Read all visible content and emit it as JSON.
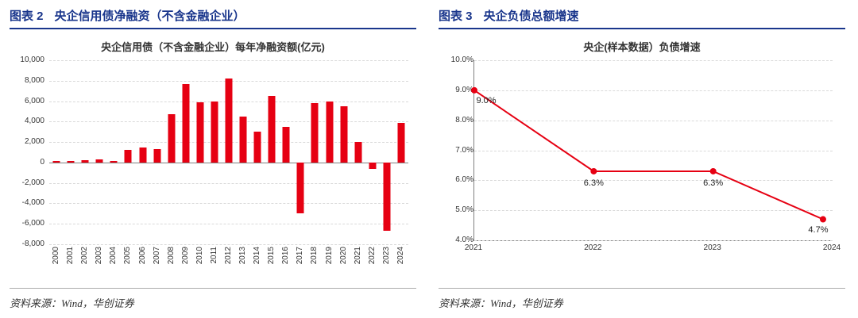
{
  "colors": {
    "header_blue": "#1a368c",
    "series_red": "#e60012",
    "grid": "#d9d9d9",
    "axis": "#808080",
    "text": "#333333"
  },
  "panels": [
    {
      "header_label": "图表 2",
      "header_title": "央企信用债净融资（不含金融企业）",
      "source": "资料来源：Wind，华创证券"
    },
    {
      "header_label": "图表 3",
      "header_title": "央企负债总额增速",
      "source": "资料来源：Wind，华创证券"
    }
  ],
  "chart_data": [
    {
      "type": "bar",
      "title": "央企信用债（不含金融企业）每年净融资额(亿元)",
      "categories": [
        "2000",
        "2001",
        "2002",
        "2003",
        "2004",
        "2005",
        "2006",
        "2007",
        "2008",
        "2009",
        "2010",
        "2011",
        "2012",
        "2013",
        "2014",
        "2015",
        "2016",
        "2017",
        "2018",
        "2019",
        "2020",
        "2021",
        "2022",
        "2023",
        "2024"
      ],
      "values": [
        100,
        100,
        250,
        300,
        150,
        1200,
        1500,
        1300,
        4700,
        7700,
        5900,
        6000,
        8200,
        4500,
        3000,
        6500,
        3500,
        -5000,
        5800,
        6000,
        5500,
        2000,
        -600,
        -6700,
        3900
      ],
      "ylim": [
        -8000,
        10000
      ],
      "ytick_step": 2000,
      "ytick_labels": [
        "10,000",
        "8,000",
        "6,000",
        "4,000",
        "2,000",
        "0",
        "-2,000",
        "-4,000",
        "-6,000",
        "-8,000"
      ],
      "grid": true,
      "legend": "none",
      "bar_color": "#e60012"
    },
    {
      "type": "line",
      "title": "央企(样本数据）负债增速",
      "x": [
        2021,
        2022,
        2023,
        2023.92
      ],
      "values": [
        9.0,
        6.3,
        6.3,
        4.7
      ],
      "point_labels": [
        "9.0%",
        "6.3%",
        "6.3%",
        "4.7%"
      ],
      "xlim": [
        2021,
        2024
      ],
      "xtick_labels": [
        "2021",
        "2022",
        "2023",
        "2024"
      ],
      "ylim": [
        4.0,
        10.0
      ],
      "ytick_step": 1.0,
      "ytick_labels": [
        "10.0%",
        "9.0%",
        "8.0%",
        "7.0%",
        "6.0%",
        "5.0%",
        "4.0%"
      ],
      "grid": true,
      "legend": "none",
      "line_color": "#e60012"
    }
  ]
}
